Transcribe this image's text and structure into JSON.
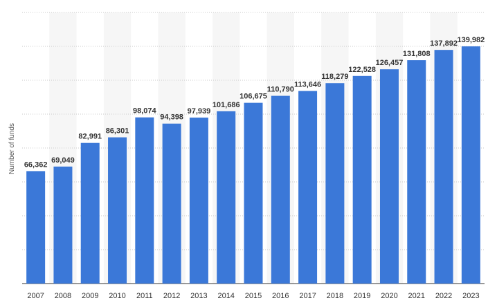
{
  "chart_data": {
    "type": "bar",
    "ylabel": "Number of funds",
    "xlabel": "",
    "categories": [
      "2007",
      "2008",
      "2009",
      "2010",
      "2011",
      "2012",
      "2013",
      "2014",
      "2015",
      "2016",
      "2017",
      "2018",
      "2019",
      "2020",
      "2021",
      "2022",
      "2023"
    ],
    "values": [
      66362,
      69049,
      82991,
      86301,
      98074,
      94398,
      97939,
      101686,
      106675,
      110790,
      113646,
      118279,
      122528,
      126457,
      131808,
      137892,
      139982
    ],
    "value_labels": [
      "66,362",
      "69,049",
      "82,991",
      "86,301",
      "98,074",
      "94,398",
      "97,939",
      "101,686",
      "106,675",
      "110,790",
      "113,646",
      "118,279",
      "122,528",
      "126,457",
      "131,808",
      "137,892",
      "139,982"
    ],
    "ylim": [
      0,
      160000
    ],
    "grid": true,
    "bar_color": "#3b78d8",
    "band_color": "#f6f6f6"
  }
}
